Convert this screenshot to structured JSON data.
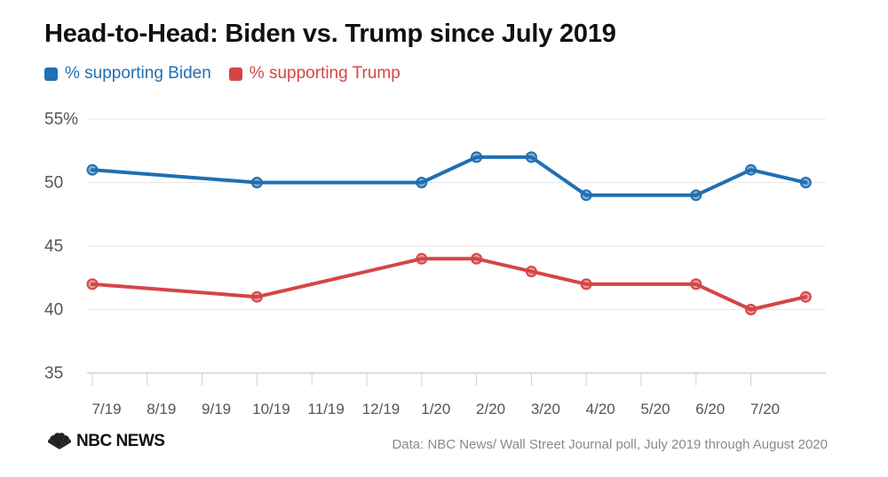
{
  "chart_data": {
    "type": "line",
    "title": "Head-to-Head: Biden vs. Trump since July 2019",
    "x_tick_labels": [
      "7/19",
      "8/19",
      "9/19",
      "10/19",
      "11/19",
      "12/19",
      "1/20",
      "2/20",
      "3/20",
      "4/20",
      "5/20",
      "6/20",
      "7/20"
    ],
    "y_tick_labels": [
      "55%",
      "50",
      "45",
      "40",
      "35"
    ],
    "y_ticks": [
      55,
      50,
      45,
      40,
      35
    ],
    "ylim": [
      35,
      55
    ],
    "xlim": [
      0,
      13
    ],
    "series": [
      {
        "name": "% supporting Biden",
        "color": "#1f6fb2",
        "x": [
          0,
          3,
          6,
          7,
          8,
          9,
          11,
          12,
          13
        ],
        "values": [
          51,
          50,
          50,
          52,
          52,
          49,
          49,
          51,
          50
        ]
      },
      {
        "name": "% supporting Trump",
        "color": "#d64545",
        "x": [
          0,
          3,
          6,
          7,
          8,
          9,
          11,
          12,
          13
        ],
        "values": [
          42,
          41,
          44,
          44,
          43,
          42,
          42,
          40,
          41
        ]
      }
    ],
    "xlabel": "",
    "ylabel": "",
    "grid": true,
    "legend_position": "top-left"
  },
  "footer": {
    "logo_text": "NBC NEWS",
    "source": "Data: NBC News/ Wall Street Journal poll, July 2019 through August 2020"
  }
}
